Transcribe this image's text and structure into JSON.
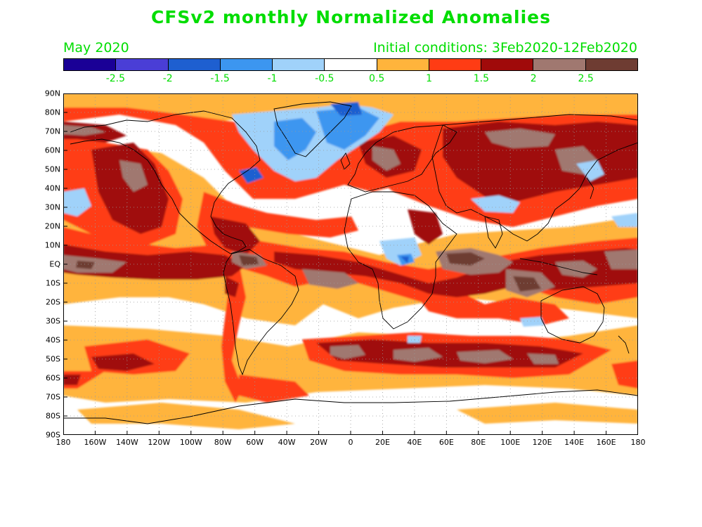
{
  "title": "CFSv2 monthly Normalized Anomalies",
  "valid_month": "May 2020",
  "initial_conditions": "Initial conditions: 3Feb2020-12Feb2020",
  "colorbar": {
    "colors": [
      "#1a0096",
      "#4a3ed6",
      "#1e5fd0",
      "#3c96f0",
      "#a0d2fa",
      "#ffffff",
      "#ffb43c",
      "#ff3c14",
      "#a00a0a",
      "#a07870",
      "#6e3c32"
    ],
    "labels": [
      "-2.5",
      "-2",
      "-1.5",
      "-1",
      "-0.5",
      "0.5",
      "1",
      "1.5",
      "2",
      "2.5"
    ]
  },
  "lat_labels": [
    "90N",
    "80N",
    "70N",
    "60N",
    "50N",
    "40N",
    "30N",
    "20N",
    "10N",
    "EQ",
    "10S",
    "20S",
    "30S",
    "40S",
    "50S",
    "60S",
    "70S",
    "80S",
    "90S"
  ],
  "lon_labels": [
    "180",
    "160W",
    "140W",
    "120W",
    "100W",
    "80W",
    "60W",
    "40W",
    "20W",
    "0",
    "20E",
    "40E",
    "60E",
    "80E",
    "100E",
    "120E",
    "140E",
    "160E",
    "180"
  ]
}
